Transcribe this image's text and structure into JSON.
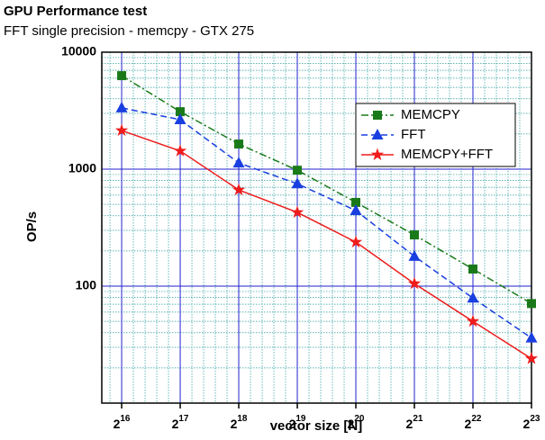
{
  "chart_data": {
    "type": "line",
    "title": "GPU Performance test",
    "subtitle": "FFT single precision - memcpy - GTX 275",
    "x_label": "vector size [N]",
    "y_label": "OP/s",
    "x": [
      65536,
      131072,
      262144,
      524288,
      1048576,
      2097152,
      4194304,
      8388608
    ],
    "x_scale": "log2",
    "y_scale": "log",
    "xlim": [
      51800,
      8388608
    ],
    "ylim": [
      10,
      10000
    ],
    "xticks": [
      {
        "value": 65536,
        "label": "2^16"
      },
      {
        "value": 131072,
        "label": "2^17"
      },
      {
        "value": 262144,
        "label": "2^18"
      },
      {
        "value": 524288,
        "label": "2^19"
      },
      {
        "value": 1048576,
        "label": "2^20"
      },
      {
        "value": 2097152,
        "label": "2^21"
      },
      {
        "value": 4194304,
        "label": "2^22"
      },
      {
        "value": 8388608,
        "label": "2^23"
      }
    ],
    "yticks": [
      100,
      1000,
      10000
    ],
    "grid": true,
    "legend": "upper right",
    "series": [
      {
        "name": "MEMCPY",
        "color": "#1a7a1a",
        "marker": "square",
        "dash": "dashdot",
        "values": [
          6300,
          3100,
          1640,
          980,
          520,
          274,
          140,
          71
        ]
      },
      {
        "name": "FFT",
        "color": "#1a3fe0",
        "marker": "triangle",
        "dash": "dash",
        "values": [
          3340,
          2650,
          1130,
          750,
          443,
          180,
          79,
          36
        ]
      },
      {
        "name": "MEMCPY+FFT",
        "color": "#ee1c1c",
        "marker": "star",
        "dash": "solid",
        "values": [
          2140,
          1430,
          665,
          427,
          238,
          105,
          50,
          24
        ]
      }
    ]
  }
}
